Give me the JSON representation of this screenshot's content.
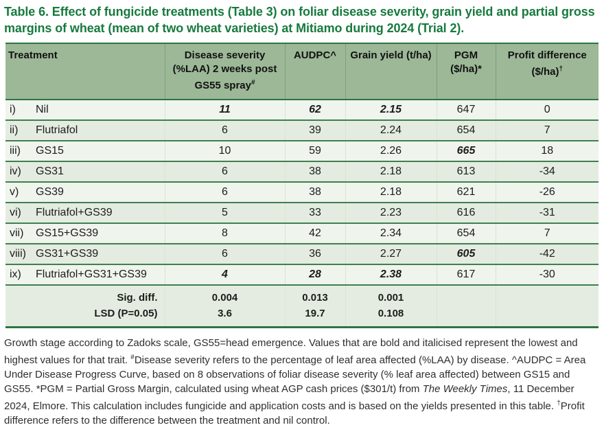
{
  "title": "Table 6. Effect of fungicide treatments (Table 3) on foliar disease severity, grain yield and partial gross margins of wheat (mean of two wheat varieties) at Mitiamo during 2024 (Trial 2).",
  "colors": {
    "title_green": "#177a3e",
    "rule": "#2d7444",
    "row_line": "#3f7f4f",
    "header_bg": "#9cb897",
    "odd_bg": "#eff4ed",
    "even_bg": "#e4ece1",
    "footer_bg": "#e4ece1"
  },
  "table": {
    "headers": [
      {
        "text": "Treatment",
        "sup": "",
        "align": "left"
      },
      {
        "text": "Disease severity (%LAA) 2 weeks post GS55 spray",
        "sup": "#",
        "align": "center"
      },
      {
        "text": "AUDPC^",
        "sup": "",
        "align": "center"
      },
      {
        "text": "Grain yield (t/ha)",
        "sup": "",
        "align": "center"
      },
      {
        "text": "PGM ($/ha)*",
        "sup": "",
        "align": "center"
      },
      {
        "text": "Profit difference ($/ha)",
        "sup": "†",
        "align": "center"
      }
    ],
    "rows": [
      {
        "num": "i)",
        "treatment": "Nil",
        "cells": [
          "11",
          "62",
          "2.15",
          "647",
          "0"
        ],
        "highlight": [
          true,
          true,
          true,
          false,
          false
        ]
      },
      {
        "num": "ii)",
        "treatment": "Flutriafol",
        "cells": [
          "6",
          "39",
          "2.24",
          "654",
          "7"
        ],
        "highlight": [
          false,
          false,
          false,
          false,
          false
        ]
      },
      {
        "num": "iii)",
        "treatment": "GS15",
        "cells": [
          "10",
          "59",
          "2.26",
          "665",
          "18"
        ],
        "highlight": [
          false,
          false,
          false,
          true,
          false
        ]
      },
      {
        "num": "iv)",
        "treatment": "GS31",
        "cells": [
          "6",
          "38",
          "2.18",
          "613",
          "-34"
        ],
        "highlight": [
          false,
          false,
          false,
          false,
          false
        ]
      },
      {
        "num": "v)",
        "treatment": "GS39",
        "cells": [
          "6",
          "38",
          "2.18",
          "621",
          "-26"
        ],
        "highlight": [
          false,
          false,
          false,
          false,
          false
        ]
      },
      {
        "num": "vi)",
        "treatment": "Flutriafol+GS39",
        "cells": [
          "5",
          "33",
          "2.23",
          "616",
          "-31"
        ],
        "highlight": [
          false,
          false,
          false,
          false,
          false
        ]
      },
      {
        "num": "vii)",
        "treatment": "GS15+GS39",
        "cells": [
          "8",
          "42",
          "2.34",
          "654",
          "7"
        ],
        "highlight": [
          false,
          false,
          false,
          false,
          false
        ]
      },
      {
        "num": "viii)",
        "treatment": "GS31+GS39",
        "cells": [
          "6",
          "36",
          "2.27",
          "605",
          "-42"
        ],
        "highlight": [
          false,
          false,
          false,
          true,
          false
        ]
      },
      {
        "num": "ix)",
        "treatment": "Flutriafol+GS31+GS39",
        "cells": [
          "4",
          "28",
          "2.38",
          "617",
          "-30"
        ],
        "highlight": [
          true,
          true,
          true,
          false,
          false
        ]
      }
    ],
    "footer": [
      {
        "label": "Sig. diff.",
        "cells": [
          "0.004",
          "0.013",
          "0.001",
          "",
          ""
        ]
      },
      {
        "label": "LSD (P=0.05)",
        "cells": [
          "3.6",
          "19.7",
          "0.108",
          "",
          ""
        ]
      }
    ]
  },
  "footnote_segments": [
    {
      "t": "Growth stage according to Zadoks scale, GS55=head emergence. Values that are bold and italicised represent the lowest and highest values for that trait. "
    },
    {
      "t": "#",
      "style": "sup"
    },
    {
      "t": "Disease severity refers to the percentage of leaf area affected (%LAA) by disease. ^AUDPC = Area Under Disease Progress Curve, based on 8 observations of foliar disease severity (% leaf area affected) between GS15 and GS55. *PGM = Partial Gross Margin, calculated using wheat AGP cash prices ($301/t) from "
    },
    {
      "t": "The Weekly Times",
      "style": "italic"
    },
    {
      "t": ", 11 December 2024, Elmore. This calculation includes fungicide and application costs and is based on the yields presented in this table. "
    },
    {
      "t": "†",
      "style": "sup"
    },
    {
      "t": "Profit difference refers to the difference between the treatment and nil control."
    }
  ]
}
